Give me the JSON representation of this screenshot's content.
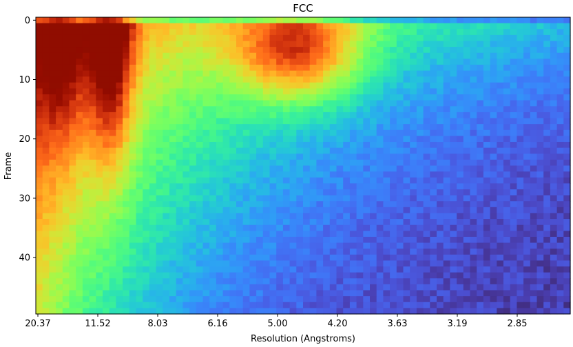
{
  "chart_data": {
    "type": "heatmap",
    "title": "FCC",
    "xlabel": "Resolution (Angstroms)",
    "ylabel": "Frame",
    "x_tick_labels": [
      "20.37",
      "11.52",
      "8.03",
      "6.16",
      "5.00",
      "4.20",
      "3.63",
      "3.19",
      "2.85"
    ],
    "y_tick_labels": [
      "0",
      "10",
      "20",
      "30",
      "40"
    ],
    "y_tick_values": [
      0,
      10,
      20,
      30,
      40
    ],
    "ylim": [
      49.5,
      -0.5
    ],
    "n_frames": 50,
    "n_resolution_bins": 80,
    "colormap": "turbo",
    "color_scale": [
      0,
      1
    ],
    "grid": false,
    "pattern_description_points": {
      "peak_low_res_band": {
        "resolution": "11.52",
        "frames": [
          0,
          25
        ],
        "value": 0.95
      },
      "low_res_edge": {
        "resolution": "20.37",
        "frames": [
          0,
          20
        ],
        "value": 0.8
      },
      "mid_res_peak": {
        "resolution": "4.60",
        "frames": [
          2,
          10
        ],
        "value": 0.7
      },
      "high_res_late": {
        "resolution": "2.85",
        "frames": [
          30,
          49
        ],
        "value": 0.05
      }
    }
  }
}
